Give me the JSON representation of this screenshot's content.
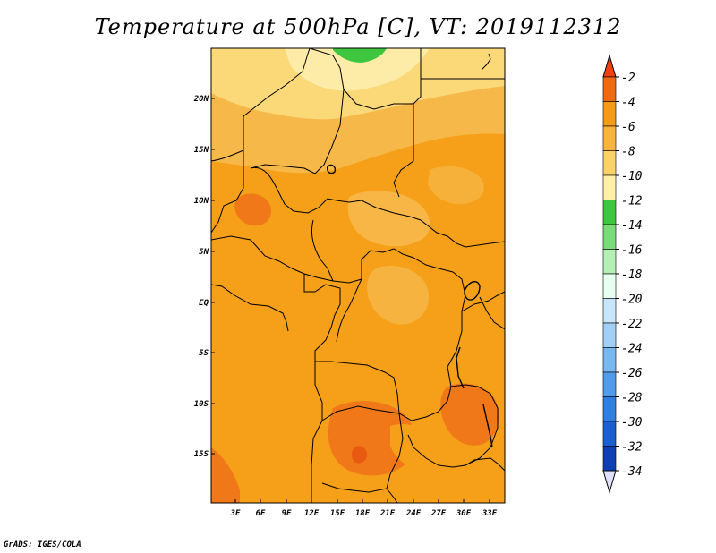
{
  "title": "Temperature at 500hPa [C], VT: 2019112312",
  "credit": "GrADS: IGES/COLA",
  "map": {
    "lat_labels": [
      "20N",
      "15N",
      "10N",
      "5N",
      "EQ",
      "5S",
      "10S",
      "15S"
    ],
    "lon_labels": [
      "3E",
      "6E",
      "9E",
      "12E",
      "15E",
      "18E",
      "21E",
      "24E",
      "27E",
      "30E",
      "33E"
    ]
  },
  "colorbar": {
    "labels": [
      "-2",
      "-4",
      "-6",
      "-8",
      "-10",
      "-12",
      "-14",
      "-16",
      "-18",
      "-20",
      "-22",
      "-24",
      "-26",
      "-28",
      "-30",
      "-32",
      "-34"
    ],
    "colors": [
      "#f06a14",
      "#f49b18",
      "#f8b43c",
      "#fbd26a",
      "#fef0a6",
      "#3ec63e",
      "#78dc78",
      "#b4efb4",
      "#e6fff0",
      "#c8e6fa",
      "#a0d0f6",
      "#78b8f0",
      "#509cea",
      "#2e7fe0",
      "#1a60d0",
      "#0e40b4",
      "#0a1478"
    ],
    "top_arrow_color": "#f04010",
    "bottom_arrow_color": "#e0e0ff"
  },
  "colors": {
    "base_field": "#f5a018",
    "warm_field": "#f07818",
    "cool_field": "#f7b84a",
    "cooler_field": "#fbd878",
    "coolest_field": "#fdeca8",
    "green_patch": "#3ec63e"
  }
}
